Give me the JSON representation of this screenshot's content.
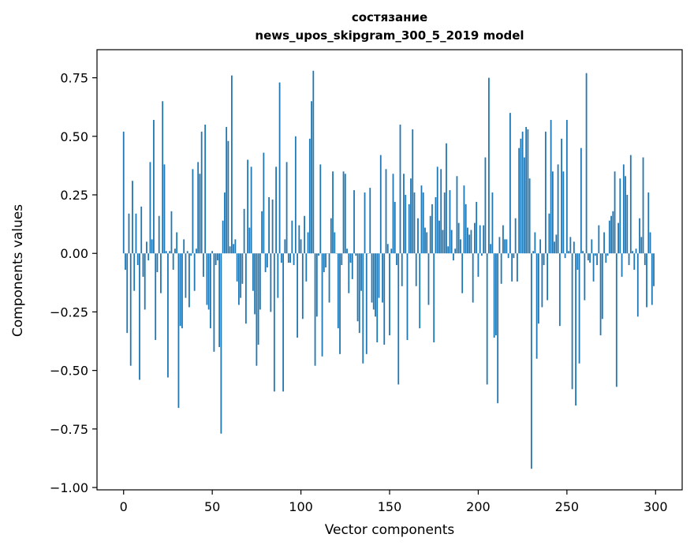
{
  "chart_data": {
    "type": "bar",
    "title_line1": "состязание",
    "title_line2": "news_upos_skipgram_300_5_2019 model",
    "xlabel": "Vector components",
    "ylabel": "Components values",
    "xlim": [
      -15,
      315
    ],
    "ylim": [
      -1.01,
      0.87
    ],
    "xticks": [
      0,
      50,
      100,
      150,
      200,
      250,
      300
    ],
    "xtick_labels": [
      "0",
      "50",
      "100",
      "150",
      "200",
      "250",
      "300"
    ],
    "yticks": [
      -1.0,
      -0.75,
      -0.5,
      -0.25,
      0.0,
      0.25,
      0.5,
      0.75
    ],
    "ytick_labels": [
      "−1.00",
      "−0.75",
      "−0.50",
      "−0.25",
      "0.00",
      "0.25",
      "0.50",
      "0.75"
    ],
    "bar_color": "#1f77b4",
    "grid": false,
    "values": [
      0.52,
      -0.07,
      -0.34,
      0.17,
      -0.48,
      0.31,
      -0.16,
      0.17,
      -0.05,
      -0.54,
      0.2,
      -0.1,
      -0.24,
      0.05,
      -0.03,
      0.39,
      0.06,
      0.57,
      -0.37,
      -0.08,
      0.16,
      -0.17,
      0.65,
      0.38,
      0.01,
      -0.53,
      0.01,
      0.18,
      -0.07,
      0.02,
      0.09,
      -0.66,
      -0.31,
      -0.32,
      0.06,
      -0.19,
      0.01,
      -0.23,
      -0.01,
      0.36,
      -0.16,
      0.02,
      0.39,
      0.34,
      0.52,
      -0.1,
      0.55,
      -0.22,
      -0.24,
      -0.32,
      0.01,
      -0.42,
      -0.05,
      -0.03,
      -0.4,
      -0.77,
      0.14,
      0.26,
      0.54,
      0.48,
      0.03,
      0.76,
      0.04,
      0.06,
      -0.12,
      -0.22,
      -0.19,
      -0.13,
      0.19,
      -0.3,
      0.4,
      0.11,
      0.37,
      -0.16,
      -0.26,
      -0.48,
      -0.39,
      -0.24,
      0.18,
      0.43,
      -0.08,
      -0.06,
      0.24,
      -0.25,
      0.23,
      -0.59,
      0.37,
      -0.19,
      0.73,
      -0.04,
      -0.59,
      0.06,
      0.39,
      -0.04,
      -0.04,
      0.14,
      -0.05,
      0.5,
      -0.36,
      0.12,
      0.06,
      -0.28,
      0.16,
      -0.12,
      0.09,
      0.49,
      0.65,
      0.78,
      -0.48,
      -0.27,
      -0.01,
      0.38,
      -0.44,
      -0.08,
      -0.06,
      0.0,
      -0.21,
      0.15,
      0.35,
      0.09,
      0.0,
      -0.32,
      -0.43,
      -0.05,
      0.35,
      0.34,
      0.02,
      -0.17,
      -0.04,
      -0.11,
      0.27,
      -0.01,
      -0.29,
      -0.34,
      -0.16,
      -0.47,
      0.26,
      -0.43,
      0.0,
      0.28,
      -0.21,
      -0.24,
      -0.27,
      -0.38,
      -0.19,
      0.42,
      -0.21,
      -0.39,
      0.36,
      0.04,
      -0.35,
      0.02,
      0.34,
      0.22,
      -0.05,
      -0.56,
      0.55,
      -0.14,
      0.34,
      0.25,
      -0.37,
      0.21,
      0.32,
      0.53,
      0.26,
      -0.14,
      0.15,
      -0.32,
      0.29,
      0.26,
      0.11,
      0.09,
      -0.22,
      0.16,
      0.21,
      -0.38,
      0.24,
      0.37,
      0.14,
      0.36,
      0.1,
      0.26,
      0.47,
      0.03,
      0.27,
      0.1,
      -0.03,
      0.02,
      0.33,
      0.13,
      0.06,
      -0.17,
      0.29,
      0.21,
      0.11,
      0.08,
      0.1,
      -0.21,
      0.13,
      0.22,
      -0.1,
      0.12,
      -0.01,
      0.12,
      0.41,
      -0.56,
      0.75,
      0.04,
      0.26,
      -0.36,
      -0.35,
      -0.64,
      0.07,
      -0.13,
      0.12,
      0.06,
      0.06,
      -0.02,
      0.6,
      -0.12,
      -0.02,
      0.15,
      -0.12,
      0.45,
      0.49,
      0.52,
      0.41,
      0.54,
      0.53,
      0.32,
      -0.92,
      0.01,
      0.09,
      -0.45,
      -0.3,
      0.06,
      -0.23,
      -0.05,
      0.52,
      -0.2,
      0.17,
      0.57,
      0.35,
      0.05,
      0.08,
      0.38,
      -0.31,
      0.49,
      0.35,
      -0.02,
      0.57,
      0.01,
      0.07,
      -0.58,
      0.05,
      -0.65,
      -0.07,
      -0.47,
      0.45,
      0.01,
      -0.2,
      0.77,
      -0.03,
      -0.04,
      0.06,
      -0.12,
      -0.01,
      -0.05,
      0.12,
      -0.35,
      -0.28,
      0.09,
      -0.04,
      -0.01,
      0.14,
      0.16,
      0.18,
      0.35,
      -0.57,
      0.13,
      0.32,
      -0.1,
      0.38,
      0.33,
      0.25,
      -0.05,
      0.42,
      0.01,
      -0.07,
      0.02,
      -0.27,
      0.15,
      0.07,
      0.41,
      -0.05,
      -0.23,
      0.26,
      0.09,
      -0.22,
      -0.14
    ]
  }
}
